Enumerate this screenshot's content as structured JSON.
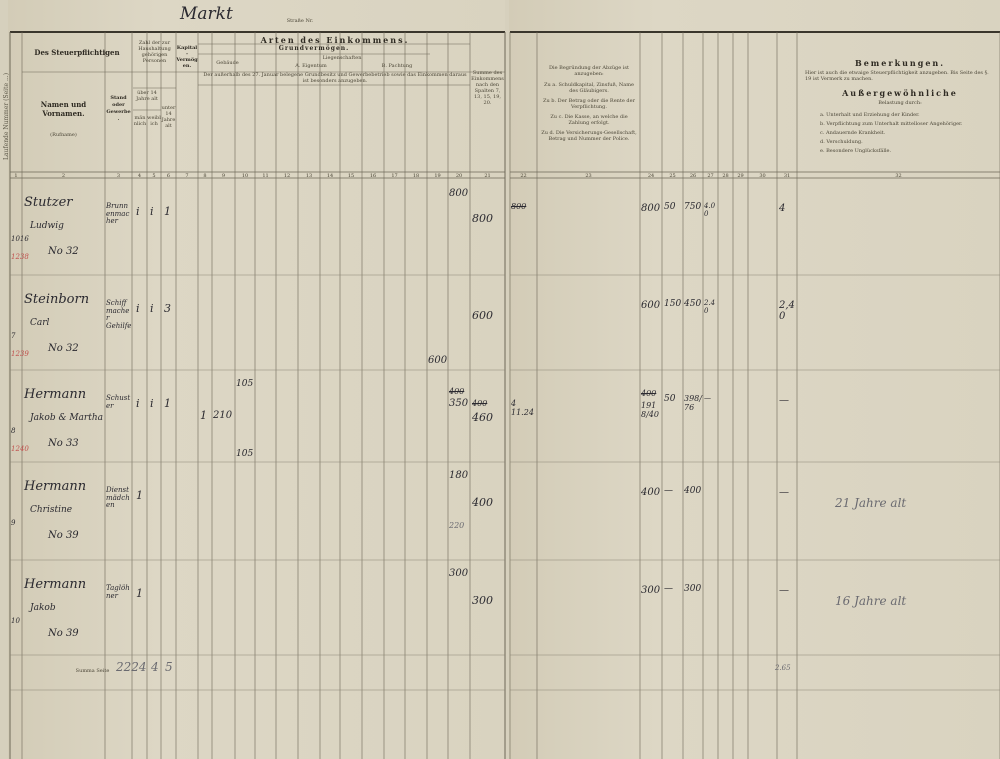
{
  "street_header": {
    "handwritten": "Markt",
    "printed": "Straße Nr."
  },
  "left_margin_label": "Laufende Nummer (Seite ...)",
  "headers": {
    "taxpayer": "Des Steuerpflichtigen",
    "names": "Namen und Vornamen.",
    "names_sub": "(Rufname)",
    "stand": "Stand oder Gewerbe.",
    "household": "Zahl der zur Haushaltung gehörigen Personen",
    "over14": "über 14 Jahre alt",
    "male": "männlich",
    "female": "weiblich",
    "under14": "unter 14 Jahre alt",
    "income_types": "Arten des Einkommens.",
    "capital": "Kapital-Vermögen.",
    "land": "Grundvermögen.",
    "buildings": "Gebäude",
    "landed": "Liegenschaften",
    "own": "A. Eigentum",
    "lease": "B. Pachtung",
    "note": "Der außerhalb des 27. Januar belegene Grundbesitz und Gewerbebetrieb sowie das Einkommen daraus ist besonders anzugeben.",
    "total": "Summe des Einkommens nach den Spalten 7, 13, 15, 19, 20.",
    "deductions": "Die Begründung der Abzüge ist anzugeben:",
    "deduction_a": "Zu a. Schuldkapital, Zinsfuß, Name des Gläubigers.",
    "deduction_b": "Zu b. Der Betrag oder die Rente der Verpflichtung.",
    "deduction_c": "Zu c. Die Kasse, an welche die Zahlung erfolgt.",
    "deduction_d": "Zu d. Die Versicherungs-Gesellschaft, Betrag und Nummer der Police.",
    "remarks": "Bemerkungen.",
    "remarks_note": "Hier ist auch die etwaige Steuerpflichtigkeit anzugeben. Bis Seite des §. 19 ist Vermerk zu machen.",
    "extraordinary": "Außergewöhnliche",
    "extraordinary_sub": "Belastung durch:",
    "burden_items": [
      "a. Unterhalt und Erziehung der Kinder.",
      "b. Verpflichtung zum Unterhalt mittelloser Angehöriger.",
      "c. Andauernde Krankheit.",
      "d. Verschuldung.",
      "e. Besondere Unglücksfälle."
    ],
    "col_numbers_left": [
      "1",
      "2",
      "3",
      "4",
      "5",
      "6",
      "7",
      "8",
      "9",
      "10",
      "11",
      "12",
      "13",
      "14",
      "15",
      "16",
      "17",
      "18",
      "19",
      "20",
      "21"
    ],
    "col_numbers_right": [
      "22",
      "23",
      "24",
      "25",
      "26",
      "27",
      "28",
      "29",
      "30",
      "31",
      "32"
    ]
  },
  "entries": [
    {
      "no": "1016",
      "red_no": "1238",
      "name": "Stutzer",
      "first": "Ludwig",
      "house": "No 32",
      "stand": "Brunnenmacher",
      "c4": "i",
      "c5": "i",
      "c6": "1",
      "c20": "800",
      "c21": "800",
      "r22": "800",
      "r24": "800",
      "r25": "50",
      "r26": "750",
      "r27": "4.00",
      "r31": "4",
      "remark": ""
    },
    {
      "no": "7",
      "red_no": "1239",
      "name": "Steinborn",
      "first": "Carl",
      "house": "No 32",
      "stand": "Schiffmacher Gehilfe",
      "c4": "i",
      "c5": "i",
      "c6": "3",
      "c19": "600",
      "c21": "600",
      "r24": "600",
      "r25": "150",
      "r26": "450",
      "r27": "2.40",
      "r31": "2,40",
      "remark": ""
    },
    {
      "no": "8",
      "red_no": "1240",
      "name": "Hermann",
      "first": "Jakob & Martha",
      "house": "No 33",
      "stand": "Schuster",
      "c4": "i",
      "c5": "i",
      "c6": "1",
      "c8": "1",
      "c9": "210",
      "c10a": "105",
      "c10b": "105",
      "c20_old": "400",
      "c20": "350",
      "c21_old": "400",
      "c21": "460",
      "r22": "4 11.24",
      "r24_old": "400",
      "r24": "1918/40",
      "r25": "50",
      "r26": "398/76",
      "r27": "—",
      "r31": "—",
      "remark": ""
    },
    {
      "no": "9",
      "red_no": "",
      "name": "Hermann",
      "first": "Christine",
      "house": "No 39",
      "stand": "Dienstmädchen",
      "c4": "1",
      "c20": "180",
      "c20b": "220",
      "c21": "400",
      "r24": "400",
      "r25": "—",
      "r26": "400",
      "r31": "—",
      "remark": "21 Jahre alt"
    },
    {
      "no": "10",
      "red_no": "",
      "name": "Hermann",
      "first": "Jakob",
      "house": "No 39",
      "stand": "Taglöhner",
      "c4": "1",
      "c20": "300",
      "c21": "300",
      "r24": "300",
      "r25": "—",
      "r26": "300",
      "r31": "—",
      "remark": "16 Jahre alt"
    }
  ],
  "sum_row": {
    "label": "Summa Seite",
    "c3": "2224",
    "c4": "4",
    "c5": "5",
    "right": "2.65"
  }
}
